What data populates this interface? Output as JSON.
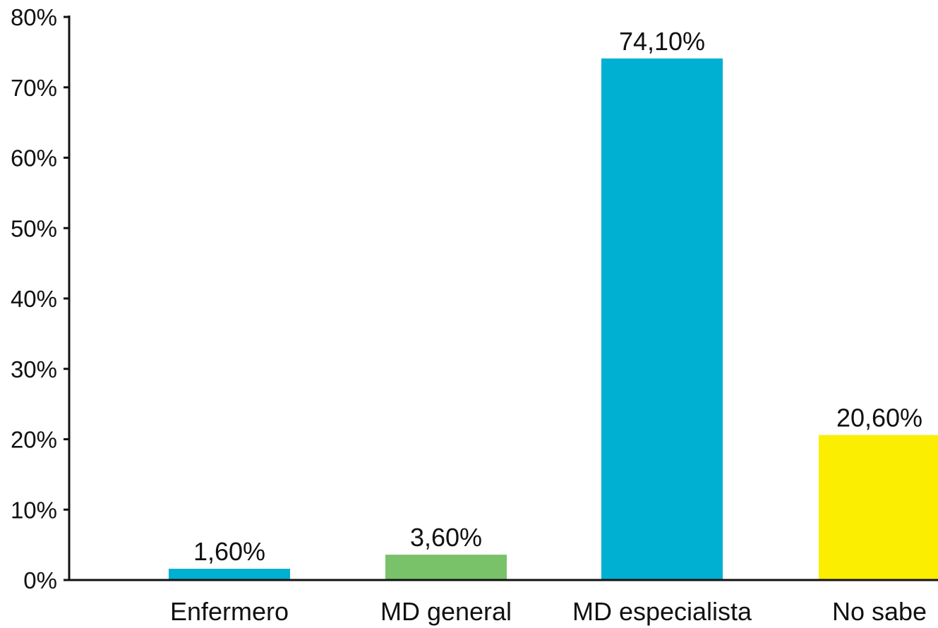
{
  "chart_data": {
    "type": "bar",
    "title": "",
    "xlabel": "",
    "ylabel": "",
    "categories": [
      "Enfermero",
      "MD general",
      "MD especialista",
      "No sabe"
    ],
    "values": [
      1.6,
      3.6,
      74.1,
      20.6
    ],
    "data_labels": [
      "1,60%",
      "3,60%",
      "74,10%",
      "20,60%"
    ],
    "bar_colors": [
      "#00b0d2",
      "#79c26a",
      "#00b0d2",
      "#fcee00"
    ],
    "ylim": [
      0,
      80
    ],
    "yticks": [
      0,
      10,
      20,
      30,
      40,
      50,
      60,
      70,
      80
    ],
    "ytick_labels": [
      "0%",
      "10%",
      "20%",
      "30%",
      "40%",
      "50%",
      "60%",
      "70%",
      "80%"
    ],
    "grid": false,
    "legend": "none"
  }
}
